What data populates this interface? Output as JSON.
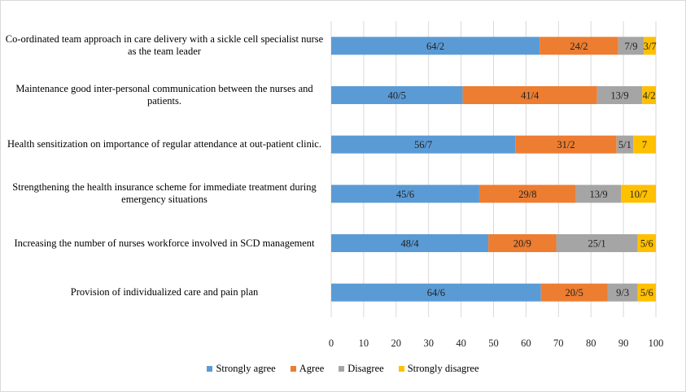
{
  "chart_data": {
    "type": "bar",
    "orientation": "horizontal",
    "stacked": true,
    "categories": [
      "Co-ordinated team approach in care delivery with a sickle cell specialist nurse as the team leader",
      "Maintenance good inter-personal communication between the nurses and patients.",
      "Health sensitization on importance of regular attendance at out-patient clinic.",
      "Strengthening the health insurance scheme for immediate treatment during emergency situations",
      "Increasing the number of nurses workforce involved in SCD management",
      "Provision of individualized care and pain plan"
    ],
    "series": [
      {
        "name": "Strongly agree",
        "color": "#5b9bd5",
        "values": [
          64.2,
          40.5,
          56.7,
          45.6,
          48.4,
          64.6
        ],
        "labels": [
          "64/2",
          "40/5",
          "56/7",
          "45/6",
          "48/4",
          "64/6"
        ]
      },
      {
        "name": "Agree",
        "color": "#ed7d31",
        "values": [
          24.2,
          41.4,
          31.2,
          29.8,
          20.9,
          20.5
        ],
        "labels": [
          "24/2",
          "41/4",
          "31/2",
          "29/8",
          "20/9",
          "20/5"
        ]
      },
      {
        "name": "Disagree",
        "color": "#a5a5a5",
        "values": [
          7.9,
          13.9,
          5.1,
          13.9,
          25.1,
          9.3
        ],
        "labels": [
          "7/9",
          "13/9",
          "5/1",
          "13/9",
          "25/1",
          "9/3"
        ]
      },
      {
        "name": "Strongly disagree",
        "color": "#ffc000",
        "values": [
          3.7,
          4.2,
          7,
          10.7,
          5.6,
          5.6
        ],
        "labels": [
          "3/7",
          "4/2",
          "7",
          "10/7",
          "5/6",
          "5/6"
        ]
      }
    ],
    "xlim": [
      0,
      100
    ],
    "xticks": [
      "0",
      "10",
      "20",
      "30",
      "40",
      "50",
      "60",
      "70",
      "80",
      "90",
      "100"
    ],
    "grid": true,
    "legend_position": "bottom"
  }
}
